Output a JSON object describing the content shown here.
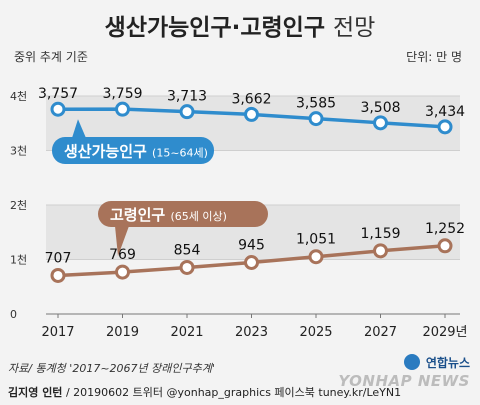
{
  "header": {
    "title_bold": "생산가능인구·고령인구",
    "title_light": "전망",
    "basis": "중위 추계 기준",
    "unit": "단위: 만 명"
  },
  "footer": {
    "source": "자료/ 통계청 '2017~2067년 장래인구추계'",
    "author": "김지영 인턴",
    "meta": "/ 20190602  트위터 @yonhap_graphics  페이스북 tuney.kr/LeYN1"
  },
  "agency": {
    "logo": "연합뉴스",
    "wordmark": "YONHAP NEWS"
  },
  "chart_data": {
    "type": "line",
    "categories": [
      "2017",
      "2019",
      "2021",
      "2023",
      "2025",
      "2027",
      "2029년"
    ],
    "y_tick_labels": [
      "0",
      "1천",
      "2천",
      "3천",
      "4천"
    ],
    "ylim": [
      0,
      4000
    ],
    "grid": true,
    "series": [
      {
        "name": "생산가능인구",
        "note": "(15~64세)",
        "color": "#2f8ccd",
        "values": [
          3757,
          3759,
          3713,
          3662,
          3585,
          3508,
          3434
        ],
        "labels": [
          "3,757",
          "3,759",
          "3,713",
          "3,662",
          "3,585",
          "3,508",
          "3,434"
        ]
      },
      {
        "name": "고령인구",
        "note": "(65세 이상)",
        "color": "#a8735a",
        "values": [
          707,
          769,
          854,
          945,
          1051,
          1159,
          1252
        ],
        "labels": [
          "707",
          "769",
          "854",
          "945",
          "1,051",
          "1,159",
          "1,252"
        ]
      }
    ]
  }
}
